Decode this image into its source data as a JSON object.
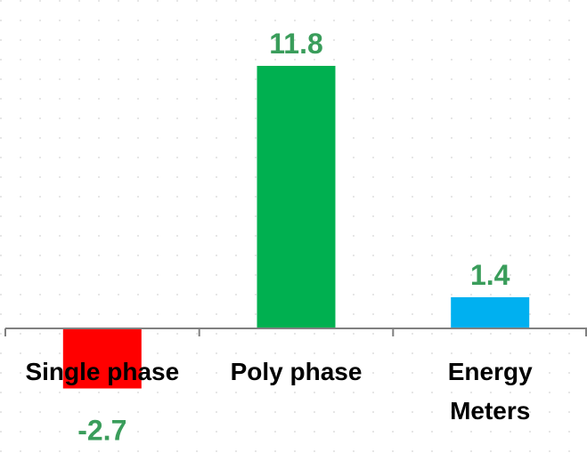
{
  "chart_data": {
    "type": "bar",
    "categories": [
      "Single phase",
      "Poly phase",
      "Energy Meters"
    ],
    "category_lines": [
      [
        "Single phase"
      ],
      [
        "Poly phase"
      ],
      [
        "Energy",
        "Meters"
      ]
    ],
    "values": [
      -2.7,
      11.8,
      1.4
    ],
    "data_labels": [
      "-2.7",
      "11.8",
      "1.4"
    ],
    "bar_colors": [
      "#ff0000",
      "#00b050",
      "#00b0f0"
    ],
    "data_label_color": "#3a9d5b",
    "axis_color": "#808080",
    "gridlines": "dotted",
    "ylim": [
      -4.5,
      13.5
    ],
    "title": "",
    "xlabel": "",
    "ylabel": ""
  }
}
